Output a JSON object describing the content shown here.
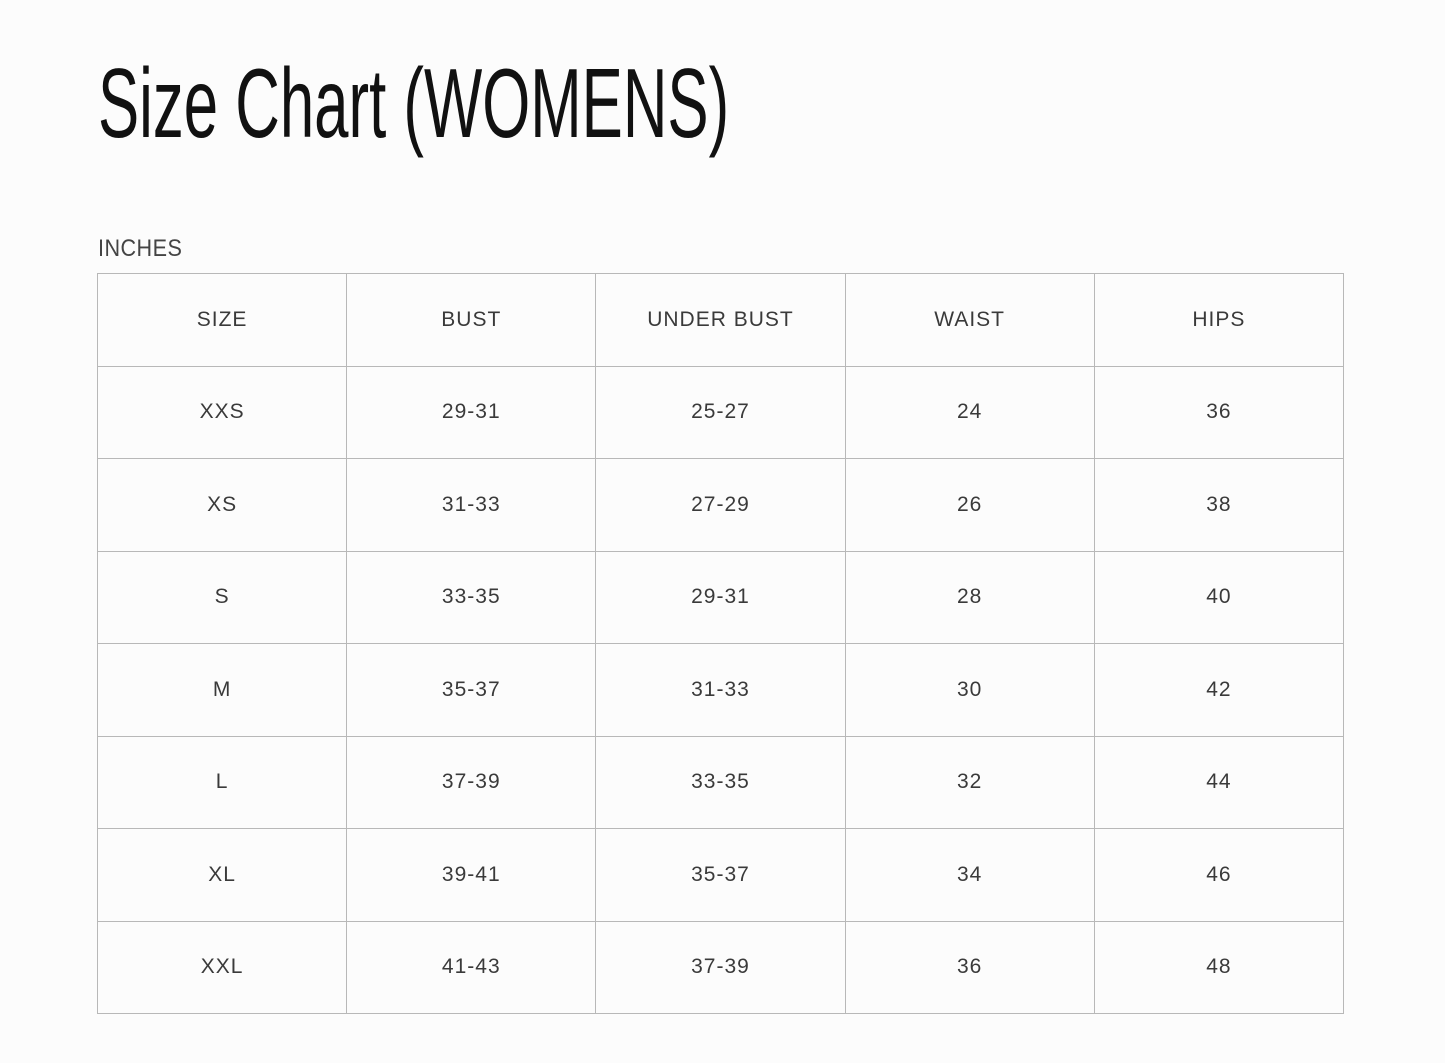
{
  "title": "Size Chart (WOMENS)",
  "unit_label": "INCHES",
  "table": {
    "headers": [
      "SIZE",
      "BUST",
      "UNDER BUST",
      "WAIST",
      "HIPS"
    ],
    "rows": [
      [
        "XXS",
        "29-31",
        "25-27",
        "24",
        "36"
      ],
      [
        "XS",
        "31-33",
        "27-29",
        "26",
        "38"
      ],
      [
        "S",
        "33-35",
        "29-31",
        "28",
        "40"
      ],
      [
        "M",
        "35-37",
        "31-33",
        "30",
        "42"
      ],
      [
        "L",
        "37-39",
        "33-35",
        "32",
        "44"
      ],
      [
        "XL",
        "39-41",
        "35-37",
        "34",
        "46"
      ],
      [
        "XXL",
        "41-43",
        "37-39",
        "36",
        "48"
      ]
    ]
  }
}
